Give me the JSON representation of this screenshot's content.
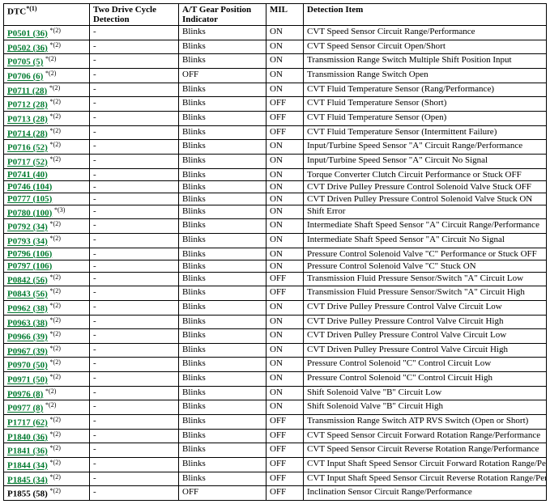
{
  "table": {
    "header": {
      "dtc_label": "DTC",
      "dtc_sup": "*(1)",
      "two_drive": "Two Drive Cycle Detection",
      "gear": "A/T Gear Position Indicator",
      "mil": "MIL",
      "detection": "Detection Item"
    },
    "rows": [
      {
        "code": "P0501 (36)",
        "suffix": "*(2)",
        "link": true,
        "two": "-",
        "gear": "Blinks",
        "mil": "ON",
        "detection": "CVT Speed Sensor Circuit Range/Performance"
      },
      {
        "code": "P0502 (36)",
        "suffix": "*(2)",
        "link": true,
        "two": "-",
        "gear": "Blinks",
        "mil": "ON",
        "detection": "CVT Speed Sensor Circuit Open/Short"
      },
      {
        "code": "P0705 (5)",
        "suffix": "*(2)",
        "link": true,
        "two": "-",
        "gear": "Blinks",
        "mil": "ON",
        "detection": "Transmission Range Switch Multiple Shift Position Input"
      },
      {
        "code": "P0706 (6)",
        "suffix": "*(2)",
        "link": true,
        "two": "-",
        "gear": "OFF",
        "mil": "ON",
        "detection": "Transmission Range Switch Open"
      },
      {
        "code": "P0711 (28)",
        "suffix": "*(2)",
        "link": true,
        "two": "-",
        "gear": "Blinks",
        "mil": "ON",
        "detection": "CVT Fluid Temperature Sensor (Rang/Performance)"
      },
      {
        "code": "P0712 (28)",
        "suffix": "*(2)",
        "link": true,
        "two": "-",
        "gear": "Blinks",
        "mil": "OFF",
        "detection": "CVT Fluid Temperature Sensor (Short)"
      },
      {
        "code": "P0713 (28)",
        "suffix": "*(2)",
        "link": true,
        "two": "-",
        "gear": "Blinks",
        "mil": "OFF",
        "detection": "CVT Fluid Temperature Sensor (Open)"
      },
      {
        "code": "P0714 (28)",
        "suffix": "*(2)",
        "link": true,
        "two": "-",
        "gear": "Blinks",
        "mil": "OFF",
        "detection": "CVT Fluid Temperature Sensor (Intermittent Failure)"
      },
      {
        "code": "P0716 (52)",
        "suffix": "*(2)",
        "link": true,
        "two": "-",
        "gear": "Blinks",
        "mil": "ON",
        "detection": "Input/Turbine Speed Sensor \"A\" Circuit Range/Performance"
      },
      {
        "code": "P0717 (52)",
        "suffix": "*(2)",
        "link": true,
        "two": "-",
        "gear": "Blinks",
        "mil": "ON",
        "detection": "Input/Turbine Speed Sensor \"A\" Circuit No Signal"
      },
      {
        "code": "P0741 (40)",
        "suffix": "",
        "link": true,
        "two": "-",
        "gear": "Blinks",
        "mil": "ON",
        "detection": "Torque Converter Clutch Circuit Performance or Stuck OFF"
      },
      {
        "code": "P0746 (104)",
        "suffix": "",
        "link": true,
        "two": "-",
        "gear": "Blinks",
        "mil": "ON",
        "detection": "CVT Drive Pulley Pressure Control Solenoid Valve Stuck OFF"
      },
      {
        "code": "P0777 (105)",
        "suffix": "",
        "link": true,
        "two": "-",
        "gear": "Blinks",
        "mil": "ON",
        "detection": "CVT Driven Pulley Pressure Control Solenoid Valve Stuck ON"
      },
      {
        "code": "P0780 (100)",
        "suffix": "*(3)",
        "link": true,
        "two": "-",
        "gear": "Blinks",
        "mil": "ON",
        "detection": "Shift Error"
      },
      {
        "code": "P0792 (34)",
        "suffix": "*(2)",
        "link": true,
        "two": "-",
        "gear": "Blinks",
        "mil": "ON",
        "detection": "Intermediate Shaft Speed Sensor \"A\" Circuit Range/Performance"
      },
      {
        "code": "P0793 (34)",
        "suffix": "*(2)",
        "link": true,
        "two": "-",
        "gear": "Blinks",
        "mil": "ON",
        "detection": "Intermediate Shaft Speed Sensor \"A\" Circuit No Signal"
      },
      {
        "code": "P0796 (106)",
        "suffix": "",
        "link": true,
        "two": "-",
        "gear": "Blinks",
        "mil": "ON",
        "detection": "Pressure Control Solenoid Valve \"C\" Performance or Stuck OFF"
      },
      {
        "code": "P0797 (106)",
        "suffix": "",
        "link": true,
        "two": "-",
        "gear": "Blinks",
        "mil": "ON",
        "detection": "Pressure Control Solenoid Valve \"C\" Stuck ON"
      },
      {
        "code": "P0842 (56)",
        "suffix": "*(2)",
        "link": true,
        "two": "-",
        "gear": "Blinks",
        "mil": "OFF",
        "detection": "Transmission Fluid Pressure Sensor/Switch \"A\" Circuit Low"
      },
      {
        "code": "P0843 (56)",
        "suffix": "*(2)",
        "link": true,
        "two": "-",
        "gear": "Blinks",
        "mil": "OFF",
        "detection": "Transmission Fluid Pressure Sensor/Switch \"A\" Circuit High"
      },
      {
        "code": "P0962 (38)",
        "suffix": "*(2)",
        "link": true,
        "two": "-",
        "gear": "Blinks",
        "mil": "ON",
        "detection": "CVT Drive Pulley Pressure Control Valve Circuit Low"
      },
      {
        "code": "P0963 (38)",
        "suffix": "*(2)",
        "link": true,
        "two": "-",
        "gear": "Blinks",
        "mil": "ON",
        "detection": "CVT Drive Pulley Pressure Control Valve Circuit High"
      },
      {
        "code": "P0966 (39)",
        "suffix": "*(2)",
        "link": true,
        "two": "-",
        "gear": "Blinks",
        "mil": "ON",
        "detection": "CVT Driven Pulley Pressure Control Valve Circuit Low"
      },
      {
        "code": "P0967 (39)",
        "suffix": "*(2)",
        "link": true,
        "two": "-",
        "gear": "Blinks",
        "mil": "ON",
        "detection": "CVT Driven Pulley Pressure Control Valve Circuit High"
      },
      {
        "code": "P0970 (50)",
        "suffix": "*(2)",
        "link": true,
        "two": "-",
        "gear": "Blinks",
        "mil": "ON",
        "detection": "Pressure Control Solenoid \"C\" Control Circuit Low"
      },
      {
        "code": "P0971 (50)",
        "suffix": "*(2)",
        "link": true,
        "two": "-",
        "gear": "Blinks",
        "mil": "ON",
        "detection": "Pressure Control Solenoid \"C\" Control Circuit High"
      },
      {
        "code": "P0976 (8)",
        "suffix": "*(2)",
        "link": true,
        "two": "-",
        "gear": "Blinks",
        "mil": "ON",
        "detection": "Shift Solenoid Valve \"B\" Circuit Low"
      },
      {
        "code": "P0977 (8)",
        "suffix": "*(2)",
        "link": true,
        "two": "-",
        "gear": "Blinks",
        "mil": "ON",
        "detection": "Shift Solenoid Valve \"B\" Circuit High"
      },
      {
        "code": "P1717 (62)",
        "suffix": "*(2)",
        "link": true,
        "two": "-",
        "gear": "Blinks",
        "mil": "OFF",
        "detection": "Transmission Range Switch ATP RVS Switch (Open or Short)"
      },
      {
        "code": "P1840 (36)",
        "suffix": "*(2)",
        "link": true,
        "two": "-",
        "gear": "Blinks",
        "mil": "OFF",
        "detection": "CVT Speed Sensor Circuit Forward Rotation Range/Performance"
      },
      {
        "code": "P1841 (36)",
        "suffix": "*(2)",
        "link": true,
        "two": "-",
        "gear": "Blinks",
        "mil": "OFF",
        "detection": "CVT Speed Sensor Circuit Reverse Rotation Range/Performance"
      },
      {
        "code": "P1844 (34)",
        "suffix": "*(2)",
        "link": true,
        "two": "-",
        "gear": "Blinks",
        "mil": "OFF",
        "detection": "CVT Input Shaft Speed Sensor Circuit Forward Rotation Range/Performance"
      },
      {
        "code": "P1845 (34)",
        "suffix": "*(2)",
        "link": true,
        "two": "-",
        "gear": "Blinks",
        "mil": "OFF",
        "detection": "CVT Input Shaft Speed Sensor Circuit Reverse Rotation Range/Performance"
      },
      {
        "code": "P1855 (58)",
        "suffix": "*(2)",
        "link": false,
        "two": "-",
        "gear": "OFF",
        "mil": "OFF",
        "detection": "Inclination Sensor Circuit Range/Performance"
      }
    ]
  }
}
